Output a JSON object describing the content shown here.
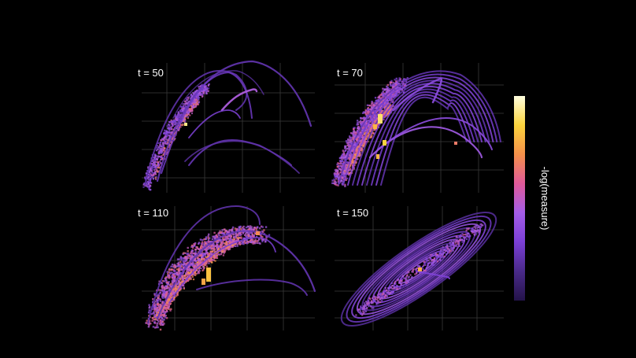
{
  "chart_data": {
    "type": "heatmap",
    "colorbar": {
      "label": "-log(measure)",
      "placement": "right",
      "colormap": [
        "#24134a",
        "#4a2a8a",
        "#7b3fd6",
        "#a45de8",
        "#e05a9a",
        "#f5904a",
        "#fbd33c",
        "#ffffe0"
      ]
    },
    "grid": true,
    "panels": [
      {
        "label": "t = 50"
      },
      {
        "label": "t = 70"
      },
      {
        "label": "t = 110"
      },
      {
        "label": "t = 150"
      }
    ]
  }
}
